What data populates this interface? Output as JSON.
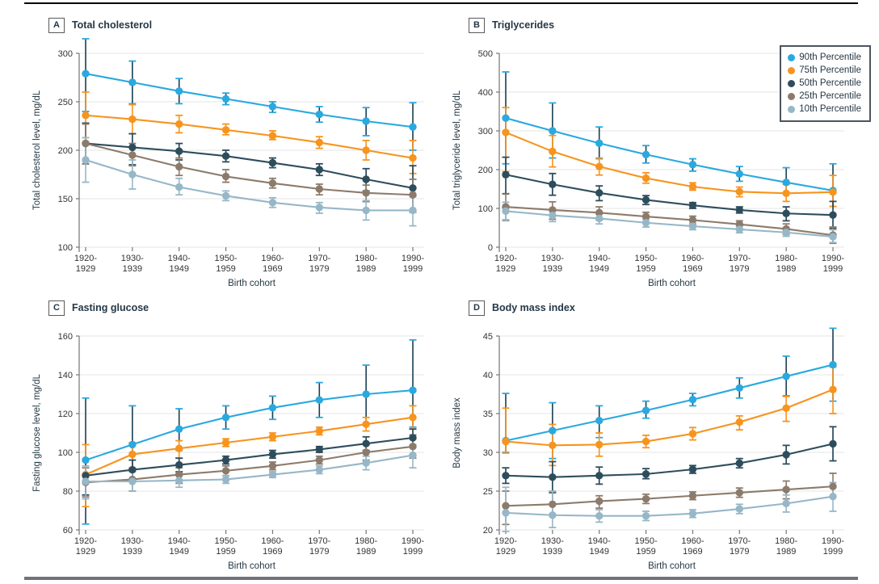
{
  "figure": {
    "background": "#ffffff",
    "top_rule_color": "#000000",
    "bottom_rule_color": "#70727b"
  },
  "colors": {
    "p90": "#29a9e0",
    "p75": "#f7941e",
    "p50": "#2e4d5c",
    "p25": "#8c7b6b",
    "p10": "#96b7c7",
    "error_dark": "#1a3e52",
    "grid": "#e9e9e9",
    "axis": "#757575",
    "tick_text": "#333333",
    "label_text": "#243845",
    "title_text": "#253746"
  },
  "legend": {
    "position": "top-right of panel B",
    "items": [
      {
        "label": "90th Percentile",
        "color": "#29a9e0"
      },
      {
        "label": "75th Percentile",
        "color": "#f7941e"
      },
      {
        "label": "50th Percentile",
        "color": "#2e4d5c"
      },
      {
        "label": "25th Percentile",
        "color": "#8c7b6b"
      },
      {
        "label": "10th Percentile",
        "color": "#96b7c7"
      }
    ]
  },
  "chart_data": [
    {
      "type": "line",
      "label": "A",
      "title": "Total cholesterol",
      "ylabel": "Total cholesterol level, mg/dL",
      "xlabel": "Birth cohort",
      "grid": true,
      "ylim": [
        100,
        300
      ],
      "yticks": [
        100,
        150,
        200,
        250,
        300
      ],
      "categories": [
        [
          "1920-",
          "1929"
        ],
        [
          "1930-",
          "1939"
        ],
        [
          "1940-",
          "1949"
        ],
        [
          "1950-",
          "1959"
        ],
        [
          "1960-",
          "1969"
        ],
        [
          "1970-",
          "1979"
        ],
        [
          "1980-",
          "1989"
        ],
        [
          "1990-",
          "1999"
        ]
      ],
      "series": [
        {
          "name": "90th Percentile",
          "color": "#29a9e0",
          "err": "#1a3e52",
          "values": [
            279,
            270,
            261,
            253,
            245,
            237,
            230,
            224
          ],
          "lo": [
            240,
            248,
            248,
            247,
            239,
            229,
            215,
            200
          ],
          "hi": [
            315,
            292,
            274,
            259,
            250,
            245,
            244,
            249
          ]
        },
        {
          "name": "75th Percentile",
          "color": "#f7941e",
          "err": "#f7941e",
          "values": [
            236,
            232,
            227,
            221,
            215,
            208,
            200,
            192
          ],
          "lo": [
            213,
            217,
            218,
            216,
            211,
            202,
            190,
            176
          ],
          "hi": [
            260,
            247,
            236,
            227,
            220,
            214,
            210,
            210
          ]
        },
        {
          "name": "50th Percentile",
          "color": "#2e4d5c",
          "err": "#1a3e52",
          "values": [
            207,
            203,
            199,
            194,
            187,
            180,
            170,
            161
          ],
          "lo": [
            186,
            185,
            190,
            188,
            182,
            174,
            158,
            138
          ],
          "hi": [
            228,
            217,
            207,
            200,
            192,
            186,
            181,
            184
          ]
        },
        {
          "name": "25th Percentile",
          "color": "#8c7b6b",
          "err": "#8c7b6b",
          "values": [
            207,
            195,
            183,
            173,
            166,
            160,
            156,
            154
          ],
          "lo": [
            186,
            184,
            174,
            167,
            161,
            154,
            147,
            136
          ],
          "hi": [
            227,
            207,
            192,
            180,
            171,
            165,
            164,
            170
          ]
        },
        {
          "name": "10th Percentile",
          "color": "#96b7c7",
          "err": "#96b7c7",
          "values": [
            190,
            175,
            162,
            153,
            146,
            141,
            138,
            138
          ],
          "lo": [
            167,
            160,
            154,
            148,
            141,
            135,
            128,
            122
          ],
          "hi": [
            213,
            190,
            171,
            158,
            151,
            146,
            148,
            152
          ]
        }
      ]
    },
    {
      "type": "line",
      "label": "B",
      "title": "Triglycerides",
      "ylabel": "Total triglyceride level, mg/dL",
      "xlabel": "Birth cohort",
      "grid": true,
      "ylim": [
        0,
        500
      ],
      "yticks": [
        0,
        100,
        200,
        300,
        400,
        500
      ],
      "categories": [
        [
          "1920-",
          "1929"
        ],
        [
          "1930-",
          "1939"
        ],
        [
          "1940-",
          "1949"
        ],
        [
          "1950-",
          "1959"
        ],
        [
          "1960-",
          "1969"
        ],
        [
          "1970-",
          "1979"
        ],
        [
          "1980-",
          "1989"
        ],
        [
          "1990-",
          "1999"
        ]
      ],
      "series": [
        {
          "name": "90th Percentile",
          "color": "#29a9e0",
          "err": "#1a3e52",
          "values": [
            333,
            300,
            268,
            239,
            213,
            189,
            167,
            146
          ],
          "lo": [
            215,
            230,
            228,
            217,
            196,
            170,
            140,
            105
          ],
          "hi": [
            452,
            372,
            310,
            262,
            228,
            208,
            205,
            215
          ]
        },
        {
          "name": "75th Percentile",
          "color": "#f7941e",
          "err": "#f7941e",
          "values": [
            296,
            247,
            208,
            178,
            156,
            143,
            139,
            142
          ],
          "lo": [
            195,
            207,
            186,
            165,
            147,
            130,
            118,
            105
          ],
          "hi": [
            360,
            288,
            230,
            192,
            166,
            155,
            162,
            185
          ]
        },
        {
          "name": "50th Percentile",
          "color": "#2e4d5c",
          "err": "#1a3e52",
          "values": [
            187,
            162,
            140,
            122,
            108,
            96,
            87,
            83
          ],
          "lo": [
            138,
            134,
            120,
            110,
            100,
            88,
            68,
            48
          ],
          "hi": [
            232,
            190,
            158,
            133,
            115,
            104,
            104,
            118
          ]
        },
        {
          "name": "25th Percentile",
          "color": "#8c7b6b",
          "err": "#8c7b6b",
          "values": [
            104,
            96,
            89,
            79,
            70,
            59,
            47,
            31
          ],
          "lo": [
            70,
            72,
            70,
            63,
            58,
            48,
            33,
            10
          ],
          "hi": [
            137,
            117,
            104,
            90,
            80,
            68,
            60,
            52
          ]
        },
        {
          "name": "10th Percentile",
          "color": "#96b7c7",
          "err": "#96b7c7",
          "values": [
            93,
            82,
            74,
            63,
            54,
            46,
            38,
            27
          ],
          "lo": [
            68,
            66,
            60,
            52,
            45,
            37,
            28,
            12
          ],
          "hi": [
            116,
            97,
            85,
            72,
            62,
            54,
            48,
            45
          ]
        }
      ]
    },
    {
      "type": "line",
      "label": "C",
      "title": "Fasting glucose",
      "ylabel": "Fasting glucose level, mg/dL",
      "xlabel": "Birth cohort",
      "grid": true,
      "ylim": [
        60,
        160
      ],
      "yticks": [
        60,
        80,
        100,
        120,
        140,
        160
      ],
      "categories": [
        [
          "1920-",
          "1929"
        ],
        [
          "1930-",
          "1939"
        ],
        [
          "1940-",
          "1949"
        ],
        [
          "1950-",
          "1959"
        ],
        [
          "1960-",
          "1969"
        ],
        [
          "1970-",
          "1979"
        ],
        [
          "1980-",
          "1989"
        ],
        [
          "1990-",
          "1999"
        ]
      ],
      "series": [
        {
          "name": "90th Percentile",
          "color": "#29a9e0",
          "err": "#1a3e52",
          "values": [
            96,
            104,
            112,
            118,
            123,
            127,
            130,
            132
          ],
          "lo": [
            63,
            85,
            101,
            112,
            117,
            118,
            115,
            113
          ],
          "hi": [
            128,
            124,
            122.5,
            124,
            129,
            136,
            145,
            158
          ]
        },
        {
          "name": "75th Percentile",
          "color": "#f7941e",
          "err": "#f7941e",
          "values": [
            88.5,
            99,
            102,
            105,
            108,
            111,
            114.5,
            118
          ],
          "lo": [
            72,
            92,
            97,
            103,
            106,
            109,
            111,
            112
          ],
          "hi": [
            104,
            105,
            106,
            107,
            110,
            113,
            118,
            124
          ]
        },
        {
          "name": "50th Percentile",
          "color": "#2e4d5c",
          "err": "#1a3e52",
          "values": [
            88,
            91,
            93.5,
            96,
            99,
            101.5,
            104.5,
            107.5
          ],
          "lo": [
            78,
            86,
            90,
            94,
            97,
            100,
            101,
            103
          ],
          "hi": [
            96,
            96,
            97,
            98,
            101,
            103,
            108,
            112
          ]
        },
        {
          "name": "25th Percentile",
          "color": "#8c7b6b",
          "err": "#8c7b6b",
          "values": [
            84.5,
            86,
            88.5,
            90.5,
            93,
            96,
            100,
            103
          ],
          "lo": [
            77,
            80,
            84,
            88,
            91,
            94,
            96,
            97
          ],
          "hi": [
            92,
            91,
            92,
            93,
            95,
            98,
            104,
            109
          ]
        },
        {
          "name": "10th Percentile",
          "color": "#96b7c7",
          "err": "#96b7c7",
          "values": [
            85,
            85,
            85.5,
            86,
            88.5,
            91,
            94.5,
            98.5
          ],
          "lo": [
            76,
            80,
            82,
            84,
            87,
            89,
            91,
            92
          ],
          "hi": [
            93,
            90,
            89,
            88,
            90,
            93,
            98,
            104
          ]
        }
      ]
    },
    {
      "type": "line",
      "label": "D",
      "title": "Body mass index",
      "ylabel": "Body mass index",
      "xlabel": "Birth cohort",
      "grid": true,
      "ylim": [
        20,
        45
      ],
      "yticks": [
        20,
        25,
        30,
        35,
        40,
        45
      ],
      "categories": [
        [
          "1920-",
          "1929"
        ],
        [
          "1930-",
          "1939"
        ],
        [
          "1940-",
          "1949"
        ],
        [
          "1950-",
          "1959"
        ],
        [
          "1960-",
          "1969"
        ],
        [
          "1970-",
          "1979"
        ],
        [
          "1980-",
          "1989"
        ],
        [
          "1990-",
          "1999"
        ]
      ],
      "series": [
        {
          "name": "90th Percentile",
          "color": "#29a9e0",
          "err": "#1a3e52",
          "values": [
            31.5,
            32.8,
            34.1,
            35.4,
            36.8,
            38.3,
            39.8,
            41.3
          ],
          "lo": [
            30.0,
            29.2,
            31.9,
            34.4,
            36.0,
            37.0,
            37.3,
            36.6
          ],
          "hi": [
            37.6,
            36.4,
            36.0,
            36.6,
            37.6,
            39.6,
            42.4,
            46.0
          ]
        },
        {
          "name": "75th Percentile",
          "color": "#f7941e",
          "err": "#f7941e",
          "values": [
            31.4,
            30.9,
            31.0,
            31.4,
            32.4,
            33.9,
            35.7,
            38.1
          ],
          "lo": [
            29.9,
            28.3,
            29.5,
            30.6,
            31.6,
            32.9,
            34.0,
            35.0
          ],
          "hi": [
            35.7,
            33.6,
            32.5,
            32.2,
            33.2,
            34.7,
            37.2,
            41.0
          ]
        },
        {
          "name": "50th Percentile",
          "color": "#2e4d5c",
          "err": "#1a3e52",
          "values": [
            27.0,
            26.8,
            27.0,
            27.2,
            27.8,
            28.6,
            29.7,
            31.1
          ],
          "lo": [
            26.0,
            24.8,
            25.9,
            26.6,
            27.3,
            28.0,
            28.5,
            28.9
          ],
          "hi": [
            28.0,
            28.8,
            28.1,
            27.9,
            28.3,
            29.2,
            30.9,
            33.3
          ]
        },
        {
          "name": "25th Percentile",
          "color": "#8c7b6b",
          "err": "#8c7b6b",
          "values": [
            23.1,
            23.3,
            23.7,
            24.0,
            24.4,
            24.8,
            25.2,
            25.6
          ],
          "lo": [
            20.7,
            21.9,
            22.8,
            23.4,
            23.9,
            24.2,
            24.0,
            24.3
          ],
          "hi": [
            25.0,
            24.9,
            24.4,
            24.6,
            24.9,
            25.4,
            26.3,
            27.3
          ]
        },
        {
          "name": "10th Percentile",
          "color": "#96b7c7",
          "err": "#96b7c7",
          "values": [
            22.2,
            21.9,
            21.8,
            21.8,
            22.1,
            22.7,
            23.4,
            24.3
          ],
          "lo": [
            19.8,
            20.3,
            21.0,
            21.2,
            21.6,
            22.1,
            22.3,
            22.4
          ],
          "hi": [
            25.5,
            25.0,
            22.6,
            22.4,
            22.6,
            23.3,
            24.5,
            26.1
          ]
        }
      ]
    }
  ]
}
